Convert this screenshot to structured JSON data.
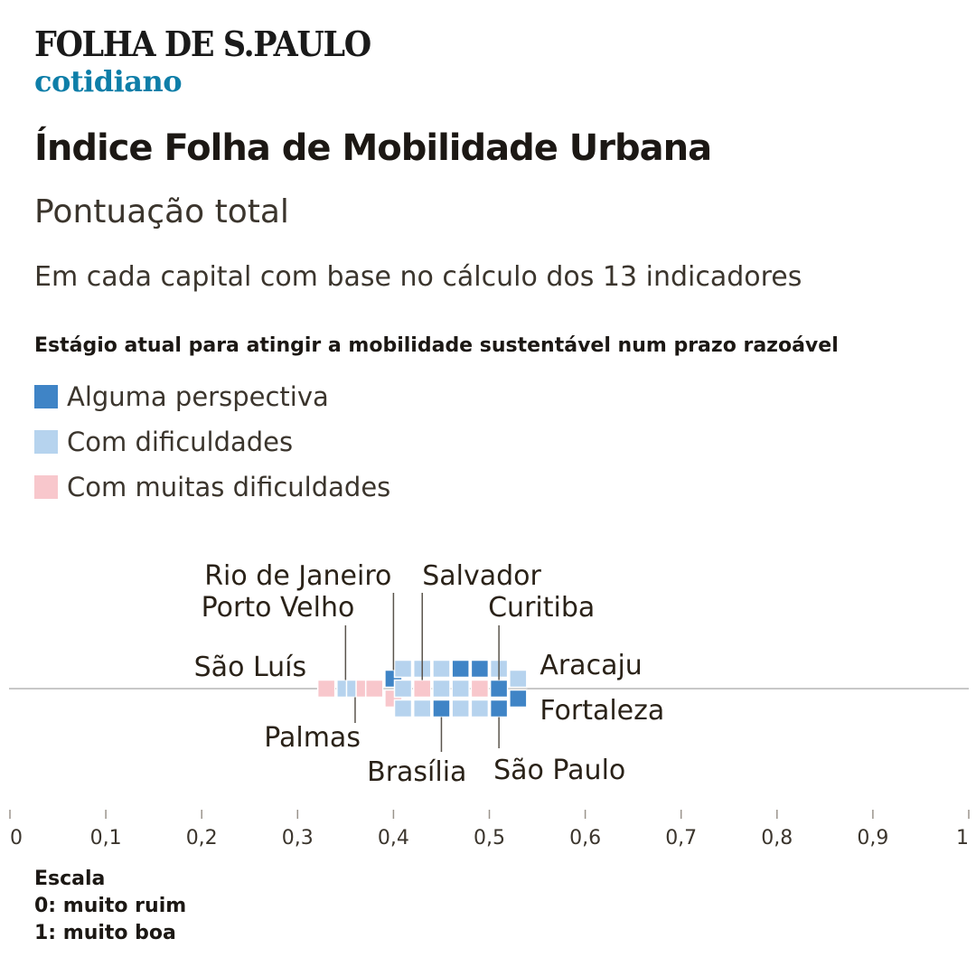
{
  "header": {
    "logo_text": "FOLHA DE S.PAULO",
    "section": "cotidiano"
  },
  "title": "Índice Folha de Mobilidade Urbana",
  "subtitle": "Pontuação total",
  "description": "Em cada capital com base no cálculo dos 13 indicadores",
  "legend": {
    "title": "Estágio atual para atingir a mobilidade sustentável num prazo razoável",
    "items": [
      {
        "label": "Alguma perspectiva",
        "color": "#3f84c6",
        "key": "alguma"
      },
      {
        "label": "Com dificuldades",
        "color": "#b6d3ee",
        "key": "dificuldades"
      },
      {
        "label": "Com muitas dificuldades",
        "color": "#f8c7cc",
        "key": "muitas"
      }
    ]
  },
  "scale_note": {
    "title": "Escala",
    "low": "0: muito ruim",
    "high": "1: muito boa"
  },
  "chart_data": {
    "type": "scatter",
    "title": "Pontuação total",
    "xlabel": "",
    "ylabel": "",
    "xlim": [
      0,
      1
    ],
    "ticks": [
      "0",
      "0,1",
      "0,2",
      "0,3",
      "0,4",
      "0,5",
      "0,6",
      "0,7",
      "0,8",
      "0,9",
      "1"
    ],
    "categories": [
      "alguma",
      "dificuldades",
      "muitas"
    ],
    "points": [
      {
        "city": "São Luís",
        "value": 0.33,
        "category": "muitas",
        "label": true
      },
      {
        "city": "Porto Velho",
        "value": 0.35,
        "category": "dificuldades",
        "label": true
      },
      {
        "city": "Palmas",
        "value": 0.36,
        "category": "dificuldades",
        "label": true
      },
      {
        "city": "",
        "value": 0.37,
        "category": "muitas",
        "label": false
      },
      {
        "city": "",
        "value": 0.38,
        "category": "muitas",
        "label": false
      },
      {
        "city": "Rio de Janeiro",
        "value": 0.4,
        "category": "alguma",
        "label": true
      },
      {
        "city": "",
        "value": 0.4,
        "category": "muitas",
        "label": false
      },
      {
        "city": "",
        "value": 0.41,
        "category": "dificuldades",
        "label": false
      },
      {
        "city": "",
        "value": 0.41,
        "category": "dificuldades",
        "label": false
      },
      {
        "city": "",
        "value": 0.41,
        "category": "dificuldades",
        "label": false
      },
      {
        "city": "Salvador",
        "value": 0.43,
        "category": "muitas",
        "label": true
      },
      {
        "city": "",
        "value": 0.43,
        "category": "dificuldades",
        "label": false
      },
      {
        "city": "",
        "value": 0.43,
        "category": "dificuldades",
        "label": false
      },
      {
        "city": "",
        "value": 0.45,
        "category": "dificuldades",
        "label": false
      },
      {
        "city": "",
        "value": 0.45,
        "category": "dificuldades",
        "label": false
      },
      {
        "city": "Brasília",
        "value": 0.45,
        "category": "alguma",
        "label": true
      },
      {
        "city": "",
        "value": 0.47,
        "category": "dificuldades",
        "label": false
      },
      {
        "city": "",
        "value": 0.47,
        "category": "alguma",
        "label": false
      },
      {
        "city": "",
        "value": 0.47,
        "category": "dificuldades",
        "label": false
      },
      {
        "city": "",
        "value": 0.49,
        "category": "muitas",
        "label": false
      },
      {
        "city": "",
        "value": 0.49,
        "category": "alguma",
        "label": false
      },
      {
        "city": "",
        "value": 0.49,
        "category": "dificuldades",
        "label": false
      },
      {
        "city": "Curitiba",
        "value": 0.51,
        "category": "alguma",
        "label": true
      },
      {
        "city": "",
        "value": 0.51,
        "category": "dificuldades",
        "label": false
      },
      {
        "city": "São Paulo",
        "value": 0.51,
        "category": "alguma",
        "label": true
      },
      {
        "city": "Aracaju",
        "value": 0.53,
        "category": "dificuldades",
        "label": true
      },
      {
        "city": "Fortaleza",
        "value": 0.53,
        "category": "alguma",
        "label": true
      }
    ]
  }
}
